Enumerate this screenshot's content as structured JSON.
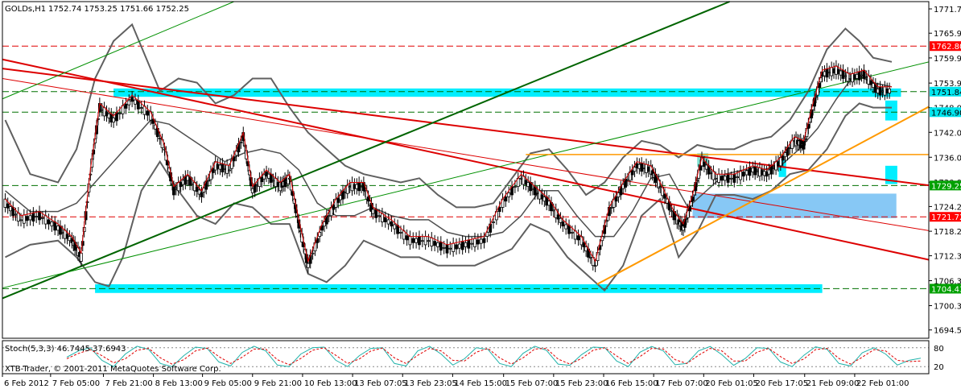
{
  "window": {
    "symbol_title": "GOLDs,H1",
    "ohlc": "1752.74 1753.25 1751.66 1752.25"
  },
  "chart_data": {
    "type": "line",
    "title": "GOLDs,H1",
    "x_ticks": [
      "6 Feb 2012",
      "7 Feb 05:00",
      "7 Feb 21:00",
      "8 Feb 13:00",
      "9 Feb 05:00",
      "9 Feb 21:00",
      "10 Feb 13:00",
      "13 Feb 07:05",
      "13 Feb 23:05",
      "14 Feb 15:00",
      "15 Feb 07:00",
      "15 Feb 23:00",
      "16 Feb 15:00",
      "17 Feb 07:00",
      "20 Feb 01:05",
      "20 Feb 17:05",
      "21 Feb 09:00",
      "22 Feb 01:00"
    ],
    "y_ticks": [
      1771.75,
      1765.9,
      1759.95,
      1753.9,
      1748.0,
      1742.05,
      1736.05,
      1730.05,
      1724.2,
      1718.25,
      1712.35,
      1706.35,
      1700.35,
      1694.5
    ],
    "ylim": [
      1692.5,
      1773.5
    ],
    "price_labels": [
      {
        "value": 1762.8,
        "text": "1762.80",
        "bg": "#ff0000",
        "fg": "#ffffff"
      },
      {
        "value": 1751.84,
        "text": "1751.84",
        "bg": "#00e5ee",
        "fg": "#000000"
      },
      {
        "value": 1746.9,
        "text": "1746.90",
        "bg": "#00e5ee",
        "fg": "#000000"
      },
      {
        "value": 1729.25,
        "text": "1729.25",
        "bg": "#00a000",
        "fg": "#ffffff"
      },
      {
        "value": 1721.72,
        "text": "1721.72",
        "bg": "#ff0000",
        "fg": "#ffffff"
      },
      {
        "value": 1704.43,
        "text": "1704.43",
        "bg": "#00a000",
        "fg": "#ffffff"
      }
    ],
    "horizontal_levels": [
      {
        "value": 1762.8,
        "color": "#e00000"
      },
      {
        "value": 1751.84,
        "color": "#007000"
      },
      {
        "value": 1746.9,
        "color": "#007000"
      },
      {
        "value": 1729.25,
        "color": "#007000"
      },
      {
        "value": 1721.72,
        "color": "#e00000"
      },
      {
        "value": 1704.43,
        "color": "#007000"
      }
    ],
    "zones": [
      {
        "from": 0.12,
        "to": 0.97,
        "y1": 1752.6,
        "y2": 1750.6,
        "color": "#00eeff"
      },
      {
        "from": 0.1,
        "to": 0.885,
        "y1": 1705.5,
        "y2": 1703.4,
        "color": "#00eeff"
      },
      {
        "from": 0.745,
        "to": 0.965,
        "y1": 1727.3,
        "y2": 1721.4,
        "color": "#87c8f5"
      },
      {
        "from": 0.75,
        "to": 0.762,
        "y1": 1737.0,
        "y2": 1733.8,
        "color": "#7fe0d0"
      },
      {
        "from": 0.838,
        "to": 0.846,
        "y1": 1735.4,
        "y2": 1731.3,
        "color": "#00eeff"
      },
      {
        "from": 0.953,
        "to": 0.966,
        "y1": 1749.7,
        "y2": 1744.9,
        "color": "#00eeff"
      },
      {
        "from": 0.953,
        "to": 0.966,
        "y1": 1734.0,
        "y2": 1729.6,
        "color": "#00eeff"
      }
    ],
    "trendlines": [
      {
        "x1": 0.0,
        "y1": 1759.6,
        "x2": 1.0,
        "y2": 1711.4,
        "color": "#dd0000",
        "width": 2
      },
      {
        "x1": 0.0,
        "y1": 1757.4,
        "x2": 1.0,
        "y2": 1729.3,
        "color": "#dd0000",
        "width": 2
      },
      {
        "x1": 0.0,
        "y1": 1755.0,
        "x2": 1.0,
        "y2": 1718.4,
        "color": "#dd0000",
        "width": 1
      },
      {
        "x1": 0.0,
        "y1": 1702.1,
        "x2": 0.785,
        "y2": 1773.5,
        "color": "#006400",
        "width": 2
      },
      {
        "x1": 0.0,
        "y1": 1704.6,
        "x2": 1.0,
        "y2": 1759.0,
        "color": "#009000",
        "width": 1
      },
      {
        "x1": 0.0,
        "y1": 1750.1,
        "x2": 0.25,
        "y2": 1773.5,
        "color": "#009000",
        "width": 1
      },
      {
        "x1": 0.642,
        "y1": 1705.5,
        "x2": 1.0,
        "y2": 1748.2,
        "color": "#ff9900",
        "width": 2
      },
      {
        "x1": 0.565,
        "y1": 1736.7,
        "x2": 1.0,
        "y2": 1736.7,
        "color": "#ff9900",
        "width": 1.5
      }
    ],
    "price_path": [
      [
        0.003,
        1725
      ],
      [
        0.02,
        1721
      ],
      [
        0.04,
        1722
      ],
      [
        0.06,
        1719
      ],
      [
        0.075,
        1716
      ],
      [
        0.085,
        1712
      ],
      [
        0.095,
        1732
      ],
      [
        0.105,
        1748
      ],
      [
        0.12,
        1745
      ],
      [
        0.14,
        1750
      ],
      [
        0.16,
        1746
      ],
      [
        0.175,
        1738
      ],
      [
        0.185,
        1728
      ],
      [
        0.2,
        1731
      ],
      [
        0.215,
        1727
      ],
      [
        0.23,
        1734
      ],
      [
        0.245,
        1733
      ],
      [
        0.26,
        1741
      ],
      [
        0.27,
        1728
      ],
      [
        0.285,
        1732
      ],
      [
        0.3,
        1729
      ],
      [
        0.31,
        1731
      ],
      [
        0.32,
        1720
      ],
      [
        0.33,
        1710
      ],
      [
        0.345,
        1719
      ],
      [
        0.36,
        1725
      ],
      [
        0.375,
        1729
      ],
      [
        0.39,
        1729
      ],
      [
        0.4,
        1723
      ],
      [
        0.42,
        1720
      ],
      [
        0.44,
        1716
      ],
      [
        0.46,
        1716
      ],
      [
        0.48,
        1714
      ],
      [
        0.5,
        1715
      ],
      [
        0.52,
        1716
      ],
      [
        0.54,
        1725
      ],
      [
        0.56,
        1731
      ],
      [
        0.575,
        1728
      ],
      [
        0.59,
        1725
      ],
      [
        0.605,
        1720
      ],
      [
        0.625,
        1716
      ],
      [
        0.64,
        1710
      ],
      [
        0.655,
        1723
      ],
      [
        0.67,
        1729
      ],
      [
        0.685,
        1734
      ],
      [
        0.7,
        1733
      ],
      [
        0.71,
        1729
      ],
      [
        0.725,
        1722
      ],
      [
        0.735,
        1719
      ],
      [
        0.745,
        1726
      ],
      [
        0.755,
        1735
      ],
      [
        0.77,
        1731
      ],
      [
        0.79,
        1731
      ],
      [
        0.81,
        1733
      ],
      [
        0.825,
        1732
      ],
      [
        0.84,
        1735
      ],
      [
        0.855,
        1740
      ],
      [
        0.865,
        1739
      ],
      [
        0.875,
        1748
      ],
      [
        0.885,
        1756
      ],
      [
        0.9,
        1757
      ],
      [
        0.915,
        1755
      ],
      [
        0.93,
        1756
      ],
      [
        0.945,
        1752
      ],
      [
        0.96,
        1752
      ]
    ],
    "upper_band": [
      [
        0.003,
        1745
      ],
      [
        0.03,
        1732
      ],
      [
        0.06,
        1730
      ],
      [
        0.08,
        1738
      ],
      [
        0.1,
        1755
      ],
      [
        0.12,
        1764
      ],
      [
        0.14,
        1768
      ],
      [
        0.155,
        1760
      ],
      [
        0.17,
        1752
      ],
      [
        0.19,
        1755
      ],
      [
        0.21,
        1754
      ],
      [
        0.23,
        1749
      ],
      [
        0.25,
        1751
      ],
      [
        0.27,
        1755
      ],
      [
        0.29,
        1755
      ],
      [
        0.31,
        1748
      ],
      [
        0.33,
        1742
      ],
      [
        0.35,
        1738
      ],
      [
        0.37,
        1734
      ],
      [
        0.39,
        1732
      ],
      [
        0.41,
        1731
      ],
      [
        0.43,
        1730
      ],
      [
        0.45,
        1731
      ],
      [
        0.47,
        1727
      ],
      [
        0.49,
        1724
      ],
      [
        0.51,
        1724
      ],
      [
        0.53,
        1725
      ],
      [
        0.55,
        1731
      ],
      [
        0.57,
        1737
      ],
      [
        0.59,
        1738
      ],
      [
        0.61,
        1733
      ],
      [
        0.63,
        1727
      ],
      [
        0.65,
        1730
      ],
      [
        0.67,
        1736
      ],
      [
        0.69,
        1740
      ],
      [
        0.71,
        1739
      ],
      [
        0.73,
        1736
      ],
      [
        0.75,
        1739
      ],
      [
        0.77,
        1738
      ],
      [
        0.79,
        1738
      ],
      [
        0.81,
        1740
      ],
      [
        0.83,
        1741
      ],
      [
        0.85,
        1745
      ],
      [
        0.87,
        1752
      ],
      [
        0.89,
        1762
      ],
      [
        0.91,
        1767
      ],
      [
        0.925,
        1764
      ],
      [
        0.94,
        1760
      ],
      [
        0.96,
        1759
      ]
    ],
    "lower_band": [
      [
        0.003,
        1712
      ],
      [
        0.03,
        1715
      ],
      [
        0.06,
        1716
      ],
      [
        0.08,
        1712
      ],
      [
        0.1,
        1706
      ],
      [
        0.115,
        1705
      ],
      [
        0.13,
        1712
      ],
      [
        0.15,
        1728
      ],
      [
        0.17,
        1735
      ],
      [
        0.19,
        1728
      ],
      [
        0.21,
        1722
      ],
      [
        0.23,
        1720
      ],
      [
        0.25,
        1725
      ],
      [
        0.27,
        1724
      ],
      [
        0.29,
        1720
      ],
      [
        0.31,
        1720
      ],
      [
        0.33,
        1708
      ],
      [
        0.35,
        1706
      ],
      [
        0.37,
        1710
      ],
      [
        0.39,
        1716
      ],
      [
        0.41,
        1714
      ],
      [
        0.43,
        1712
      ],
      [
        0.45,
        1712
      ],
      [
        0.47,
        1710
      ],
      [
        0.49,
        1710
      ],
      [
        0.51,
        1710
      ],
      [
        0.53,
        1712
      ],
      [
        0.55,
        1714
      ],
      [
        0.57,
        1720
      ],
      [
        0.59,
        1718
      ],
      [
        0.61,
        1712
      ],
      [
        0.63,
        1708
      ],
      [
        0.65,
        1704
      ],
      [
        0.67,
        1710
      ],
      [
        0.69,
        1722
      ],
      [
        0.71,
        1726
      ],
      [
        0.73,
        1712
      ],
      [
        0.75,
        1718
      ],
      [
        0.77,
        1727
      ],
      [
        0.79,
        1727
      ],
      [
        0.81,
        1726
      ],
      [
        0.83,
        1728
      ],
      [
        0.85,
        1732
      ],
      [
        0.87,
        1733
      ],
      [
        0.89,
        1738
      ],
      [
        0.91,
        1746
      ],
      [
        0.925,
        1749
      ],
      [
        0.94,
        1748
      ],
      [
        0.96,
        1748
      ]
    ],
    "middle_band": [
      [
        0.003,
        1728
      ],
      [
        0.03,
        1723
      ],
      [
        0.06,
        1723
      ],
      [
        0.08,
        1725
      ],
      [
        0.1,
        1730
      ],
      [
        0.12,
        1735
      ],
      [
        0.14,
        1740
      ],
      [
        0.16,
        1745
      ],
      [
        0.18,
        1744
      ],
      [
        0.2,
        1741
      ],
      [
        0.22,
        1738
      ],
      [
        0.24,
        1735
      ],
      [
        0.26,
        1737
      ],
      [
        0.28,
        1738
      ],
      [
        0.3,
        1737
      ],
      [
        0.32,
        1733
      ],
      [
        0.34,
        1725
      ],
      [
        0.36,
        1722
      ],
      [
        0.38,
        1722
      ],
      [
        0.4,
        1724
      ],
      [
        0.42,
        1722
      ],
      [
        0.44,
        1721
      ],
      [
        0.46,
        1721
      ],
      [
        0.48,
        1718
      ],
      [
        0.5,
        1717
      ],
      [
        0.52,
        1717
      ],
      [
        0.54,
        1718
      ],
      [
        0.56,
        1722
      ],
      [
        0.58,
        1728
      ],
      [
        0.6,
        1728
      ],
      [
        0.62,
        1722
      ],
      [
        0.64,
        1717
      ],
      [
        0.66,
        1717
      ],
      [
        0.68,
        1723
      ],
      [
        0.7,
        1731
      ],
      [
        0.72,
        1732
      ],
      [
        0.74,
        1724
      ],
      [
        0.76,
        1728
      ],
      [
        0.78,
        1732
      ],
      [
        0.8,
        1733
      ],
      [
        0.82,
        1733
      ],
      [
        0.84,
        1734
      ],
      [
        0.86,
        1738
      ],
      [
        0.88,
        1743
      ],
      [
        0.9,
        1750
      ],
      [
        0.92,
        1756
      ],
      [
        0.94,
        1754
      ],
      [
        0.96,
        1753
      ]
    ],
    "stochastic": {
      "label": "Stoch(5,3,3) 46.7445 37.6943",
      "ticks": [
        80,
        20
      ],
      "k_path": [
        50,
        70,
        80,
        40,
        20,
        60,
        85,
        75,
        30,
        20,
        55,
        82,
        78,
        35,
        22,
        65,
        85,
        70,
        25,
        20,
        60,
        80,
        82,
        40,
        20,
        55,
        78,
        80,
        30,
        22,
        70,
        85,
        60,
        25,
        45,
        80,
        75,
        30,
        20,
        62,
        85,
        72,
        28,
        24,
        58,
        82,
        80,
        38,
        20,
        66,
        84,
        70,
        26,
        30,
        70,
        84,
        58,
        24,
        46,
        80,
        78,
        35,
        20,
        56,
        83,
        75,
        30,
        22,
        64,
        80,
        60,
        25,
        40,
        47
      ],
      "d_path": [
        45,
        62,
        74,
        55,
        32,
        45,
        72,
        78,
        48,
        28,
        42,
        70,
        79,
        52,
        30,
        50,
        76,
        76,
        42,
        26,
        46,
        72,
        80,
        56,
        30,
        44,
        70,
        79,
        48,
        30,
        56,
        78,
        70,
        40,
        38,
        66,
        78,
        48,
        28,
        48,
        76,
        78,
        44,
        28,
        46,
        72,
        80,
        54,
        30,
        52,
        78,
        76,
        42,
        30,
        56,
        78,
        70,
        38,
        38,
        66,
        78,
        52,
        30,
        44,
        74,
        78,
        46,
        28,
        50,
        74,
        70,
        40,
        36,
        38
      ]
    },
    "copyright": "XTB-Trader, © 2001-2011 MetaQuotes Software Corp."
  }
}
